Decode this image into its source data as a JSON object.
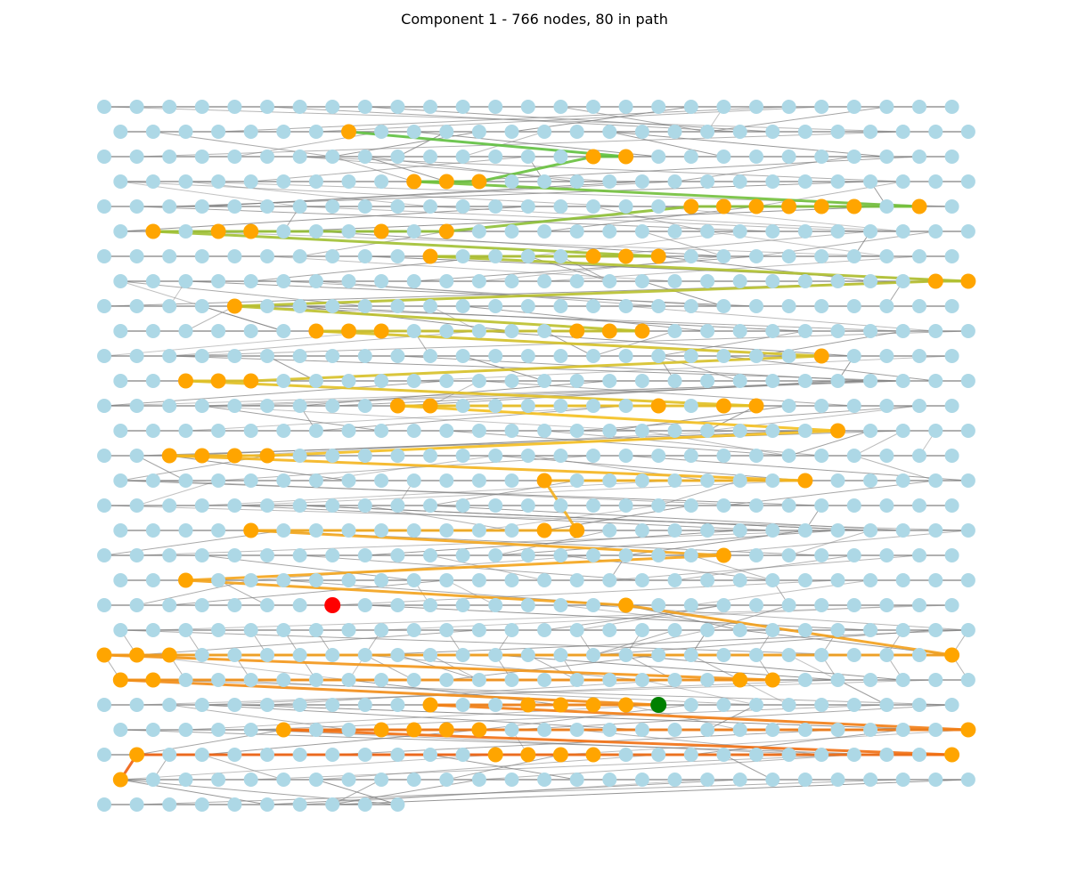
{
  "title": "Component 1 - 766 nodes, 80 in path",
  "colors": {
    "node": "#add8e6",
    "path_node": "#ffa500",
    "start_node": "#ff0000",
    "end_node": "#008000",
    "edge": "#808080",
    "path_edge_start": "#f06010",
    "path_edge_mid": "#f5c020",
    "path_edge_end": "#60c040"
  },
  "graph": {
    "layout": "staggered grid, even rows full, odd rows offset by half a column",
    "rows": 29,
    "columns": 27,
    "last_row_nodes": 10,
    "path_nodes": [
      [
        7,
        1
      ],
      [
        9,
        3
      ],
      [
        10,
        3
      ],
      [
        11,
        3
      ],
      [
        15,
        2
      ],
      [
        16,
        2
      ],
      [
        18,
        4
      ],
      [
        19,
        4
      ],
      [
        20,
        4
      ],
      [
        21,
        4
      ],
      [
        22,
        4
      ],
      [
        23,
        4
      ],
      [
        25,
        4
      ],
      [
        1,
        5
      ],
      [
        3,
        5
      ],
      [
        4,
        5
      ],
      [
        8,
        5
      ],
      [
        10,
        5
      ],
      [
        10,
        6
      ],
      [
        15,
        6
      ],
      [
        16,
        6
      ],
      [
        17,
        6
      ],
      [
        25,
        7
      ],
      [
        26,
        7
      ],
      [
        4,
        8
      ],
      [
        6,
        9
      ],
      [
        7,
        9
      ],
      [
        8,
        9
      ],
      [
        14,
        9
      ],
      [
        15,
        9
      ],
      [
        16,
        9
      ],
      [
        22,
        10
      ],
      [
        2,
        11
      ],
      [
        3,
        11
      ],
      [
        4,
        11
      ],
      [
        9,
        12
      ],
      [
        10,
        12
      ],
      [
        17,
        12
      ],
      [
        19,
        12
      ],
      [
        20,
        12
      ],
      [
        22,
        13
      ],
      [
        2,
        14
      ],
      [
        3,
        14
      ],
      [
        4,
        14
      ],
      [
        5,
        14
      ],
      [
        13,
        15
      ],
      [
        21,
        15
      ],
      [
        4,
        17
      ],
      [
        13,
        17
      ],
      [
        14,
        17
      ],
      [
        19,
        18
      ],
      [
        2,
        19
      ],
      [
        16,
        20
      ],
      [
        0,
        22
      ],
      [
        1,
        22
      ],
      [
        2,
        22
      ],
      [
        26,
        22
      ],
      [
        0,
        23
      ],
      [
        1,
        23
      ],
      [
        19,
        23
      ],
      [
        20,
        23
      ],
      [
        10,
        24
      ],
      [
        13,
        24
      ],
      [
        14,
        24
      ],
      [
        15,
        24
      ],
      [
        16,
        24
      ],
      [
        17,
        24
      ],
      [
        5,
        25
      ],
      [
        8,
        25
      ],
      [
        9,
        25
      ],
      [
        10,
        25
      ],
      [
        11,
        25
      ],
      [
        26,
        25
      ],
      [
        1,
        26
      ],
      [
        12,
        26
      ],
      [
        13,
        26
      ],
      [
        14,
        26
      ],
      [
        15,
        26
      ],
      [
        26,
        26
      ],
      [
        0,
        27
      ]
    ],
    "start_node": [
      7,
      20
    ],
    "end_node": [
      17,
      24
    ]
  }
}
